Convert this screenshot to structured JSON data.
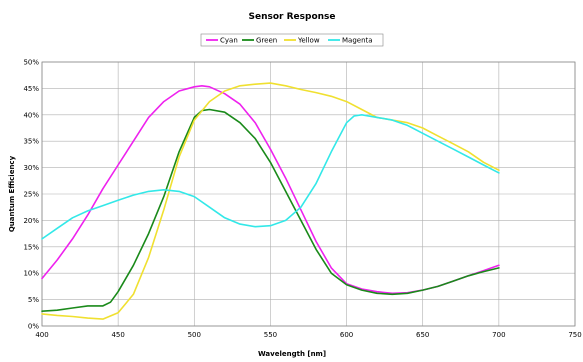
{
  "chart_data": {
    "type": "line",
    "title": "Sensor Response",
    "xlabel": "Wavelength [nm]",
    "ylabel": "Quantum Efficiency",
    "xlim": [
      400,
      750
    ],
    "ylim": [
      0,
      50
    ],
    "x_ticks": [
      "400",
      "450",
      "500",
      "550",
      "600",
      "650",
      "700",
      "750"
    ],
    "y_ticks": [
      "0%",
      "5%",
      "10%",
      "15%",
      "20%",
      "25%",
      "30%",
      "35%",
      "40%",
      "45%",
      "50%"
    ],
    "grid": true,
    "legend": "top-center",
    "series": [
      {
        "name": "Cyan",
        "color": "#ee22ee",
        "x": [
          400,
          410,
          420,
          430,
          440,
          450,
          460,
          470,
          480,
          490,
          500,
          505,
          510,
          520,
          530,
          540,
          550,
          560,
          570,
          580,
          590,
          600,
          610,
          620,
          630,
          640,
          650,
          660,
          670,
          680,
          690,
          700
        ],
        "y": [
          9.0,
          12.5,
          16.5,
          21.0,
          26.0,
          30.5,
          35.0,
          39.5,
          42.5,
          44.5,
          45.3,
          45.5,
          45.3,
          44.0,
          42.0,
          38.5,
          33.5,
          28.0,
          22.0,
          16.0,
          11.0,
          8.0,
          7.0,
          6.5,
          6.2,
          6.3,
          6.8,
          7.5,
          8.5,
          9.5,
          10.5,
          11.5
        ]
      },
      {
        "name": "Green",
        "color": "#1a8a1a",
        "x": [
          400,
          410,
          420,
          430,
          440,
          445,
          450,
          460,
          470,
          480,
          490,
          500,
          505,
          510,
          520,
          530,
          540,
          550,
          560,
          570,
          580,
          590,
          600,
          610,
          620,
          630,
          640,
          650,
          660,
          670,
          680,
          690,
          700
        ],
        "y": [
          2.8,
          3.0,
          3.4,
          3.8,
          3.8,
          4.5,
          6.5,
          11.5,
          17.5,
          24.5,
          33.0,
          39.5,
          40.8,
          41.0,
          40.5,
          38.5,
          35.5,
          31.0,
          25.5,
          20.0,
          14.5,
          10.0,
          7.8,
          6.8,
          6.2,
          6.0,
          6.2,
          6.8,
          7.5,
          8.5,
          9.5,
          10.3,
          11.0
        ]
      },
      {
        "name": "Yellow",
        "color": "#f0e030",
        "x": [
          400,
          410,
          420,
          430,
          440,
          450,
          460,
          470,
          480,
          490,
          500,
          510,
          520,
          530,
          540,
          550,
          560,
          570,
          580,
          590,
          600,
          610,
          620,
          630,
          640,
          650,
          660,
          670,
          680,
          690,
          700
        ],
        "y": [
          2.3,
          2.0,
          1.8,
          1.5,
          1.3,
          2.5,
          6.0,
          13.0,
          22.0,
          32.0,
          39.0,
          42.5,
          44.5,
          45.5,
          45.8,
          46.0,
          45.5,
          44.8,
          44.2,
          43.5,
          42.5,
          41.0,
          39.5,
          39.0,
          38.5,
          37.5,
          36.0,
          34.5,
          33.0,
          31.0,
          29.5
        ]
      },
      {
        "name": "Magenta",
        "color": "#33e8e8",
        "x": [
          400,
          410,
          420,
          430,
          440,
          450,
          460,
          470,
          480,
          490,
          500,
          510,
          520,
          530,
          540,
          550,
          560,
          570,
          580,
          590,
          600,
          605,
          610,
          620,
          630,
          640,
          650,
          660,
          670,
          680,
          690,
          700
        ],
        "y": [
          16.5,
          18.5,
          20.5,
          21.8,
          22.8,
          23.8,
          24.8,
          25.5,
          25.8,
          25.5,
          24.5,
          22.5,
          20.5,
          19.3,
          18.8,
          19.0,
          20.0,
          22.5,
          27.0,
          33.0,
          38.5,
          39.8,
          40.0,
          39.5,
          39.0,
          38.0,
          36.5,
          35.0,
          33.5,
          32.0,
          30.5,
          29.0
        ]
      }
    ]
  }
}
